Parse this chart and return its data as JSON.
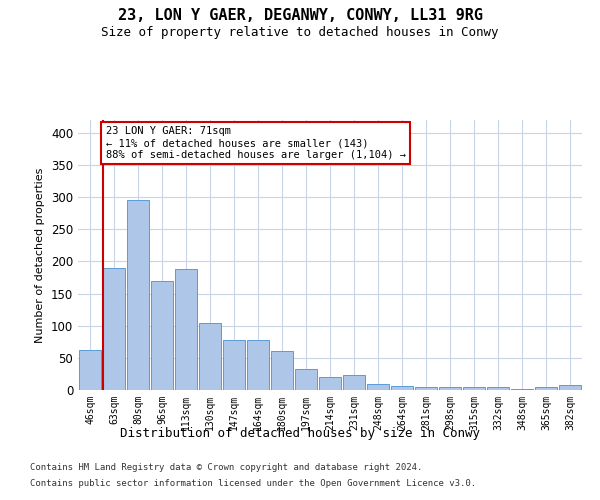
{
  "title1": "23, LON Y GAER, DEGANWY, CONWY, LL31 9RG",
  "title2": "Size of property relative to detached houses in Conwy",
  "xlabel": "Distribution of detached houses by size in Conwy",
  "ylabel": "Number of detached properties",
  "categories": [
    "46sqm",
    "63sqm",
    "80sqm",
    "96sqm",
    "113sqm",
    "130sqm",
    "147sqm",
    "164sqm",
    "180sqm",
    "197sqm",
    "214sqm",
    "231sqm",
    "248sqm",
    "264sqm",
    "281sqm",
    "298sqm",
    "315sqm",
    "332sqm",
    "348sqm",
    "365sqm",
    "382sqm"
  ],
  "values": [
    63,
    190,
    296,
    170,
    188,
    104,
    78,
    78,
    61,
    33,
    21,
    23,
    9,
    7,
    5,
    4,
    4,
    4,
    2,
    5,
    8
  ],
  "bar_color": "#aec6e8",
  "bar_edge_color": "#5b9bd5",
  "vline_color": "#cc0000",
  "annotation_text": "23 LON Y GAER: 71sqm\n← 11% of detached houses are smaller (143)\n88% of semi-detached houses are larger (1,104) →",
  "annotation_box_color": "#ffffff",
  "annotation_box_edge": "#cc0000",
  "ylim": [
    0,
    420
  ],
  "yticks": [
    0,
    50,
    100,
    150,
    200,
    250,
    300,
    350,
    400
  ],
  "footer1": "Contains HM Land Registry data © Crown copyright and database right 2024.",
  "footer2": "Contains public sector information licensed under the Open Government Licence v3.0.",
  "bg_color": "#ffffff",
  "grid_color": "#c8d4e8",
  "title1_fontsize": 11,
  "title2_fontsize": 9,
  "ylabel_fontsize": 8,
  "xlabel_fontsize": 9,
  "tick_fontsize": 7,
  "footer_fontsize": 6.5
}
